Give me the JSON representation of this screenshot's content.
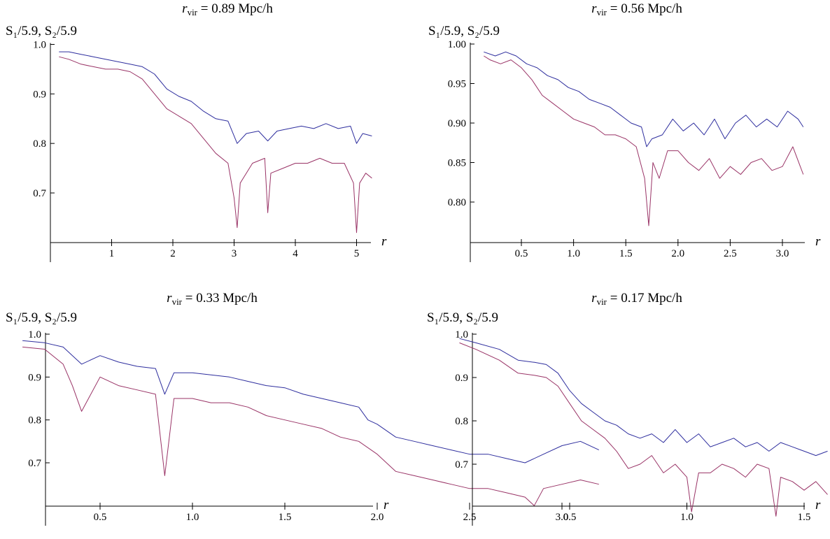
{
  "colors": {
    "s1": "#2e2e9e",
    "s2": "#993366"
  },
  "chart_data": [
    {
      "type": "line",
      "title_var": "r",
      "title_sub": "vir",
      "title_rest": " = 0.89 Mpc/h",
      "ylabel": "S₁/5.9, S₂/5.9",
      "xlabel": "r",
      "xlim": [
        0,
        5.28
      ],
      "ylim": [
        0.6,
        1.0
      ],
      "xticks": [
        1,
        2,
        3,
        4,
        5
      ],
      "xtick_labels": [
        "1",
        "2",
        "3",
        "4",
        "5"
      ],
      "yticks": [
        0.7,
        0.8,
        0.9,
        1.0
      ],
      "ytick_labels": [
        "0.7",
        "0.8",
        "0.9",
        "1.0"
      ],
      "grid": false,
      "series": [
        {
          "x": [
            0.14,
            0.3,
            0.5,
            0.7,
            0.9,
            1.1,
            1.3,
            1.5,
            1.7,
            1.9,
            2.1,
            2.3,
            2.5,
            2.7,
            2.9,
            3.05,
            3.2,
            3.4,
            3.55,
            3.7,
            3.9,
            4.1,
            4.3,
            4.5,
            4.7,
            4.9,
            5.0,
            5.1,
            5.25
          ],
          "y": [
            0.985,
            0.985,
            0.98,
            0.975,
            0.97,
            0.965,
            0.96,
            0.955,
            0.94,
            0.91,
            0.895,
            0.885,
            0.865,
            0.85,
            0.845,
            0.8,
            0.82,
            0.825,
            0.805,
            0.825,
            0.83,
            0.835,
            0.83,
            0.84,
            0.83,
            0.835,
            0.8,
            0.82,
            0.815
          ]
        },
        {
          "x": [
            0.14,
            0.3,
            0.5,
            0.7,
            0.9,
            1.1,
            1.3,
            1.5,
            1.7,
            1.9,
            2.1,
            2.3,
            2.5,
            2.7,
            2.9,
            3.0,
            3.05,
            3.1,
            3.3,
            3.5,
            3.55,
            3.6,
            3.8,
            4.0,
            4.2,
            4.4,
            4.6,
            4.8,
            4.95,
            5.0,
            5.05,
            5.15,
            5.25
          ],
          "y": [
            0.975,
            0.97,
            0.96,
            0.955,
            0.95,
            0.95,
            0.945,
            0.93,
            0.9,
            0.87,
            0.855,
            0.84,
            0.81,
            0.78,
            0.76,
            0.69,
            0.63,
            0.72,
            0.76,
            0.77,
            0.66,
            0.74,
            0.75,
            0.76,
            0.76,
            0.77,
            0.76,
            0.76,
            0.72,
            0.62,
            0.72,
            0.74,
            0.73
          ]
        }
      ]
    },
    {
      "type": "line",
      "title_var": "r",
      "title_sub": "vir",
      "title_rest": " = 0.56 Mpc/h",
      "ylabel": "S₁/5.9, S₂/5.9",
      "xlabel": "r",
      "xlim": [
        0.0,
        3.25
      ],
      "ylim": [
        0.76,
        1.0
      ],
      "xticks": [
        0.5,
        1.0,
        1.5,
        2.0,
        2.5,
        3.0
      ],
      "xtick_labels": [
        "0.5",
        "1.0",
        "1.5",
        "2.0",
        "2.5",
        "3.0"
      ],
      "yticks": [
        0.8,
        0.85,
        0.9,
        0.95,
        1.0
      ],
      "ytick_labels": [
        "0.80",
        "0.85",
        "0.90",
        "0.95",
        "1.00"
      ],
      "grid": false,
      "series": [
        {
          "x": [
            0.14,
            0.25,
            0.35,
            0.45,
            0.55,
            0.65,
            0.75,
            0.85,
            0.95,
            1.05,
            1.15,
            1.25,
            1.35,
            1.45,
            1.55,
            1.65,
            1.7,
            1.75,
            1.85,
            1.95,
            2.05,
            2.15,
            2.25,
            2.35,
            2.45,
            2.55,
            2.65,
            2.75,
            2.85,
            2.95,
            3.05,
            3.15,
            3.2
          ],
          "y": [
            0.99,
            0.985,
            0.99,
            0.985,
            0.975,
            0.97,
            0.96,
            0.955,
            0.945,
            0.94,
            0.93,
            0.925,
            0.92,
            0.91,
            0.9,
            0.895,
            0.87,
            0.88,
            0.885,
            0.905,
            0.89,
            0.9,
            0.885,
            0.905,
            0.88,
            0.9,
            0.91,
            0.895,
            0.905,
            0.895,
            0.915,
            0.905,
            0.895
          ]
        },
        {
          "x": [
            0.14,
            0.2,
            0.3,
            0.4,
            0.5,
            0.6,
            0.7,
            0.8,
            0.9,
            1.0,
            1.1,
            1.2,
            1.3,
            1.4,
            1.5,
            1.6,
            1.68,
            1.72,
            1.76,
            1.82,
            1.9,
            2.0,
            2.1,
            2.2,
            2.3,
            2.4,
            2.5,
            2.6,
            2.7,
            2.8,
            2.9,
            3.0,
            3.1,
            3.2
          ],
          "y": [
            0.985,
            0.98,
            0.975,
            0.98,
            0.97,
            0.955,
            0.935,
            0.925,
            0.915,
            0.905,
            0.9,
            0.895,
            0.885,
            0.885,
            0.88,
            0.87,
            0.83,
            0.77,
            0.85,
            0.83,
            0.865,
            0.865,
            0.85,
            0.84,
            0.855,
            0.83,
            0.845,
            0.835,
            0.85,
            0.855,
            0.84,
            0.845,
            0.87,
            0.835
          ]
        }
      ]
    },
    {
      "type": "line",
      "title_var": "r",
      "title_sub": "vir",
      "title_rest": " = 0.33 Mpc/h",
      "ylabel": "S₁/5.9, S₂/5.9",
      "xlabel": "r",
      "xlim": [
        0.0,
        3.28
      ],
      "ylim": [
        0.6,
        1.0
      ],
      "xticks": [
        0.5,
        1.0,
        1.5,
        2.0,
        2.5,
        3.0
      ],
      "xtick_labels": [
        "0.5",
        "1.0",
        "1.5",
        "2.0",
        "2.5",
        "3.0"
      ],
      "yticks": [
        0.7,
        0.8,
        0.9,
        1.0
      ],
      "ytick_labels": [
        "0.7",
        "0.8",
        "0.9",
        "1.0"
      ],
      "grid": false,
      "series": [
        {
          "x": [
            0.08,
            0.2,
            0.3,
            0.4,
            0.5,
            0.6,
            0.7,
            0.8,
            0.85,
            0.9,
            1.0,
            1.1,
            1.2,
            1.3,
            1.4,
            1.5,
            1.6,
            1.7,
            1.8,
            1.9,
            1.95,
            2.0,
            2.1,
            2.2,
            2.3,
            2.4,
            2.5,
            2.6,
            2.7,
            2.8,
            2.9,
            3.0,
            3.1,
            3.2
          ],
          "y": [
            0.985,
            0.98,
            0.97,
            0.93,
            0.95,
            0.935,
            0.925,
            0.92,
            0.86,
            0.91,
            0.91,
            0.905,
            0.9,
            0.89,
            0.88,
            0.875,
            0.86,
            0.85,
            0.84,
            0.83,
            0.8,
            0.79,
            0.76,
            0.75,
            0.74,
            0.73,
            0.72,
            0.72,
            0.71,
            0.7,
            0.72,
            0.74,
            0.75,
            0.73
          ]
        },
        {
          "x": [
            0.08,
            0.2,
            0.3,
            0.35,
            0.4,
            0.5,
            0.6,
            0.7,
            0.8,
            0.85,
            0.9,
            1.0,
            1.1,
            1.2,
            1.3,
            1.4,
            1.5,
            1.6,
            1.7,
            1.8,
            1.9,
            2.0,
            2.1,
            2.2,
            2.3,
            2.4,
            2.5,
            2.6,
            2.7,
            2.8,
            2.85,
            2.9,
            3.0,
            3.1,
            3.2
          ],
          "y": [
            0.97,
            0.965,
            0.93,
            0.88,
            0.82,
            0.9,
            0.88,
            0.87,
            0.86,
            0.67,
            0.85,
            0.85,
            0.84,
            0.84,
            0.83,
            0.81,
            0.8,
            0.79,
            0.78,
            0.76,
            0.75,
            0.72,
            0.68,
            0.67,
            0.66,
            0.65,
            0.64,
            0.64,
            0.63,
            0.62,
            0.6,
            0.64,
            0.65,
            0.66,
            0.65
          ]
        }
      ]
    },
    {
      "type": "line",
      "title_var": "r",
      "title_sub": "vir",
      "title_rest": " = 0.17 Mpc/h",
      "ylabel": "S₁/5.9, S₂/5.9",
      "xlabel": "r",
      "xlim": [
        0.0,
        1.65
      ],
      "ylim": [
        0.6,
        1.0
      ],
      "xticks": [
        0.5,
        1.0,
        1.5
      ],
      "xtick_labels": [
        "0.5",
        "1.0",
        "1.5"
      ],
      "yticks": [
        0.7,
        0.8,
        0.9,
        1.0
      ],
      "ytick_labels": [
        "0.7",
        "0.8",
        "0.9",
        "1.0"
      ],
      "grid": false,
      "series": [
        {
          "x": [
            0.03,
            0.1,
            0.2,
            0.28,
            0.35,
            0.4,
            0.45,
            0.5,
            0.55,
            0.6,
            0.65,
            0.7,
            0.75,
            0.8,
            0.85,
            0.9,
            0.95,
            1.0,
            1.05,
            1.1,
            1.15,
            1.2,
            1.25,
            1.3,
            1.35,
            1.4,
            1.45,
            1.5,
            1.55,
            1.6
          ],
          "y": [
            0.99,
            0.98,
            0.965,
            0.94,
            0.935,
            0.93,
            0.91,
            0.87,
            0.84,
            0.82,
            0.8,
            0.79,
            0.77,
            0.76,
            0.77,
            0.75,
            0.78,
            0.75,
            0.77,
            0.74,
            0.75,
            0.76,
            0.74,
            0.75,
            0.73,
            0.75,
            0.74,
            0.73,
            0.72,
            0.73
          ]
        },
        {
          "x": [
            0.03,
            0.1,
            0.2,
            0.28,
            0.35,
            0.4,
            0.45,
            0.5,
            0.55,
            0.6,
            0.65,
            0.7,
            0.75,
            0.8,
            0.85,
            0.9,
            0.95,
            1.0,
            1.02,
            1.05,
            1.1,
            1.15,
            1.2,
            1.25,
            1.3,
            1.35,
            1.38,
            1.4,
            1.45,
            1.5,
            1.55,
            1.6
          ],
          "y": [
            0.98,
            0.965,
            0.94,
            0.91,
            0.905,
            0.9,
            0.88,
            0.84,
            0.8,
            0.78,
            0.76,
            0.73,
            0.69,
            0.7,
            0.72,
            0.68,
            0.7,
            0.67,
            0.59,
            0.68,
            0.68,
            0.7,
            0.69,
            0.67,
            0.7,
            0.69,
            0.58,
            0.67,
            0.66,
            0.64,
            0.66,
            0.63
          ]
        }
      ]
    }
  ]
}
